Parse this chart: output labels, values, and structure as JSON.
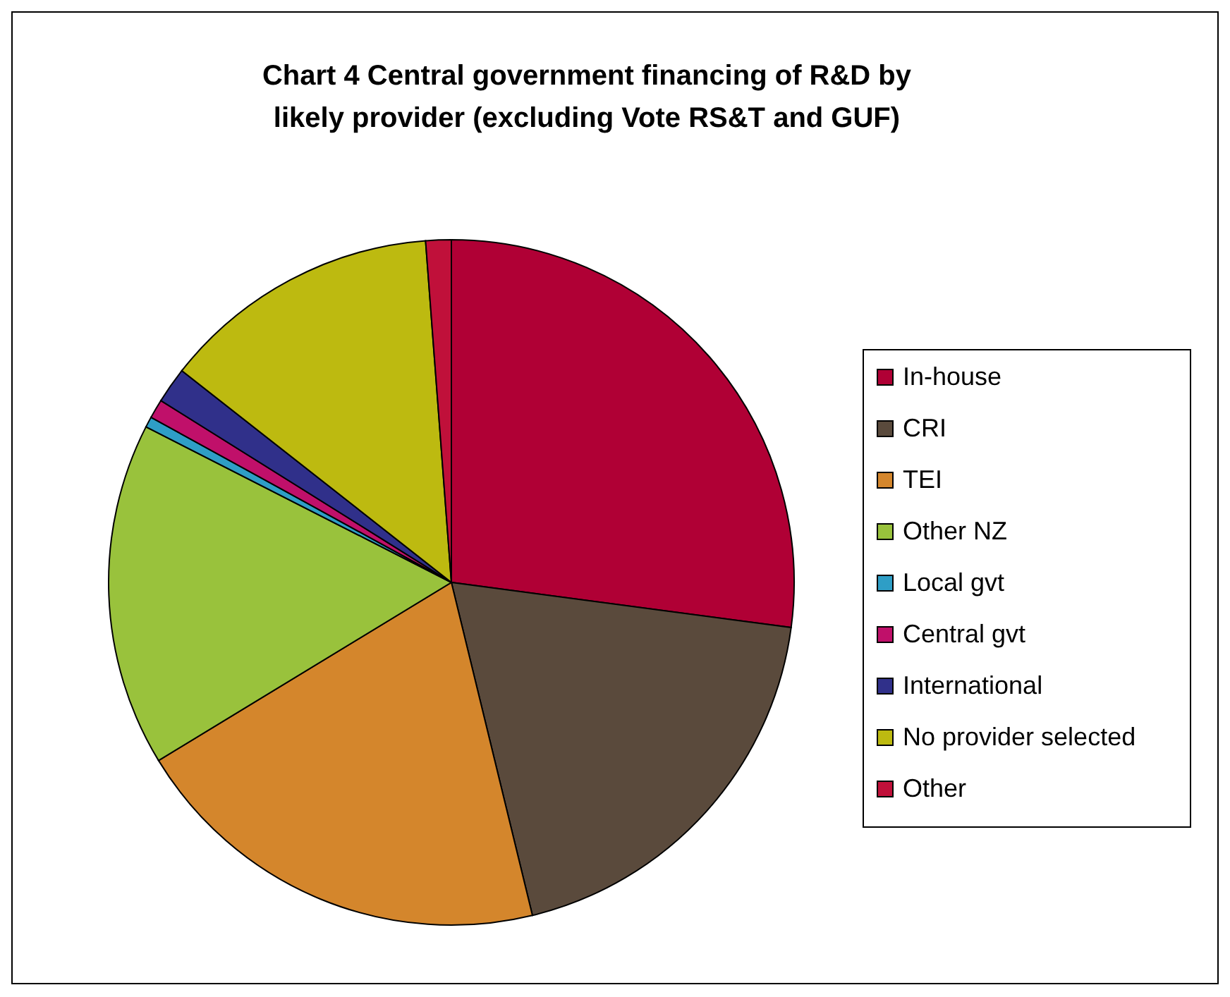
{
  "chart_data": {
    "type": "pie",
    "title": "Chart 4 Central government financing of R&D by likely provider (excluding Vote RS&T and GUF)",
    "categories": [
      "In-house",
      "CRI",
      "TEI",
      "Other NZ",
      "Local gvt",
      "Central gvt",
      "International",
      "No provider selected",
      "Other"
    ],
    "values": [
      27.1,
      19.1,
      20.1,
      16.2,
      0.5,
      0.9,
      1.7,
      13.2,
      1.2
    ],
    "colors": [
      "#b00035",
      "#5a4a3c",
      "#d4862c",
      "#99c23c",
      "#2e9ec6",
      "#c0106a",
      "#30308a",
      "#bdba10",
      "#c0103a"
    ],
    "legend": "right"
  }
}
